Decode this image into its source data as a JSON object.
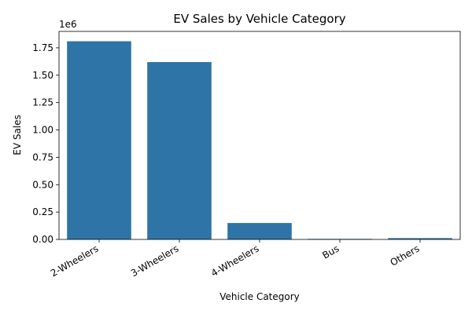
{
  "chart_data": {
    "type": "bar",
    "title": "EV Sales by Vehicle Category",
    "xlabel": "Vehicle Category",
    "ylabel": "EV Sales",
    "categories": [
      "2-Wheelers",
      "3-Wheelers",
      "4-Wheelers",
      "Bus",
      "Others"
    ],
    "values": [
      1810000,
      1620000,
      150000,
      5000,
      12000
    ],
    "ylim": [
      0,
      1900000
    ],
    "yticks": [
      0,
      250000,
      500000,
      750000,
      1000000,
      1250000,
      1500000,
      1750000
    ],
    "ytick_labels": [
      "0.00",
      "0.25",
      "0.50",
      "0.75",
      "1.00",
      "1.25",
      "1.50",
      "1.75"
    ],
    "y_offset_label": "1e6",
    "bar_color": "#2e74a6",
    "grid": false,
    "legend": "none"
  }
}
